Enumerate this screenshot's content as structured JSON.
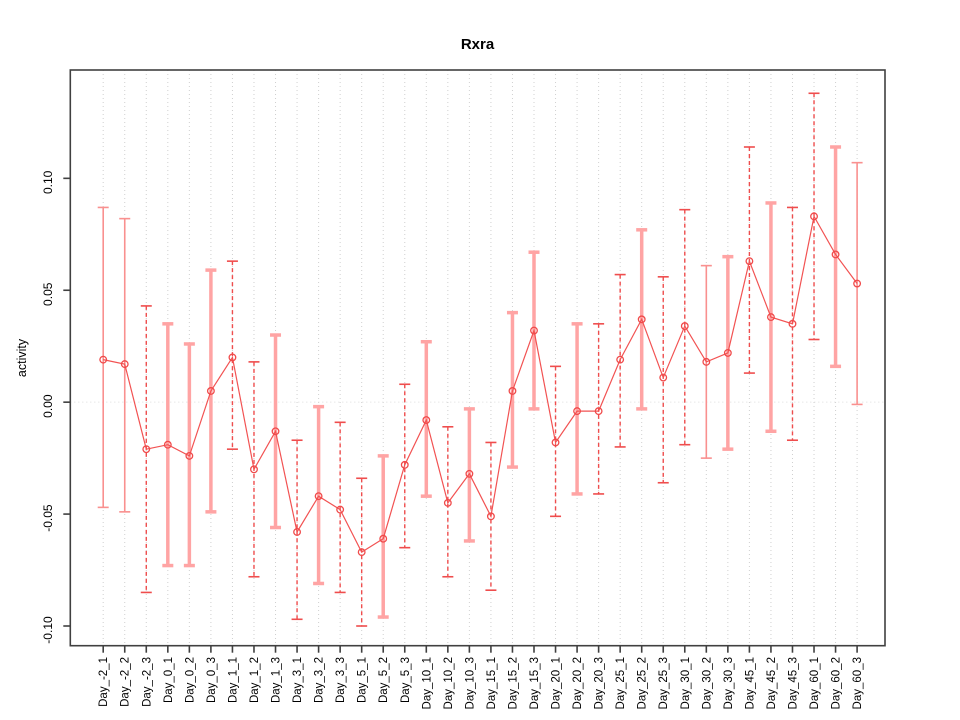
{
  "title": "Rxra",
  "ylabel": "activity",
  "chart_data": {
    "type": "scatter",
    "title": "Rxra",
    "xlabel": "",
    "ylabel": "activity",
    "legend": null,
    "grid": "vertical-dotted",
    "zero_line": true,
    "categories": [
      "Day_-2_1",
      "Day_-2_2",
      "Day_-2_3",
      "Day_0_1",
      "Day_0_2",
      "Day_0_3",
      "Day_1_1",
      "Day_1_2",
      "Day_1_3",
      "Day_3_1",
      "Day_3_2",
      "Day_3_3",
      "Day_5_1",
      "Day_5_2",
      "Day_5_3",
      "Day_10_1",
      "Day_10_2",
      "Day_10_3",
      "Day_15_1",
      "Day_15_2",
      "Day_15_3",
      "Day_20_1",
      "Day_20_2",
      "Day_20_3",
      "Day_25_1",
      "Day_25_2",
      "Day_25_3",
      "Day_30_1",
      "Day_30_2",
      "Day_30_3",
      "Day_45_1",
      "Day_45_2",
      "Day_45_3",
      "Day_60_1",
      "Day_60_2",
      "Day_60_3"
    ],
    "series": [
      {
        "name": "activity",
        "values": [
          0.019,
          0.017,
          -0.021,
          -0.019,
          -0.024,
          0.005,
          0.02,
          -0.03,
          -0.013,
          -0.058,
          -0.042,
          -0.048,
          -0.067,
          -0.061,
          -0.028,
          -0.008,
          -0.045,
          -0.032,
          -0.051,
          0.005,
          0.032,
          -0.018,
          -0.004,
          -0.004,
          0.019,
          0.037,
          0.011,
          0.034,
          0.018,
          0.022,
          0.063,
          0.038,
          0.035,
          0.083,
          0.066,
          0.053
        ],
        "lower": [
          -0.047,
          -0.049,
          -0.085,
          -0.073,
          -0.073,
          -0.049,
          -0.021,
          -0.078,
          -0.056,
          -0.097,
          -0.081,
          -0.085,
          -0.1,
          -0.096,
          -0.065,
          -0.042,
          -0.078,
          -0.062,
          -0.084,
          -0.029,
          -0.003,
          -0.051,
          -0.041,
          -0.041,
          -0.02,
          -0.003,
          -0.036,
          -0.019,
          -0.025,
          -0.021,
          0.013,
          -0.013,
          -0.017,
          0.028,
          0.016,
          -0.001
        ],
        "upper": [
          0.087,
          0.082,
          0.043,
          0.035,
          0.026,
          0.059,
          0.063,
          0.018,
          0.03,
          -0.017,
          -0.002,
          -0.009,
          -0.034,
          -0.024,
          0.008,
          0.027,
          -0.011,
          -0.003,
          -0.018,
          0.04,
          0.067,
          0.016,
          0.035,
          0.035,
          0.057,
          0.077,
          0.056,
          0.086,
          0.061,
          0.065,
          0.114,
          0.089,
          0.087,
          0.138,
          0.114,
          0.107
        ]
      }
    ],
    "error_bar_styles": [
      "solid",
      "solid",
      "dashed",
      "thick",
      "thick",
      "thick",
      "dashed",
      "dashed",
      "thick",
      "dashed",
      "thick",
      "dashed",
      "dashed",
      "thick",
      "dashed",
      "thick",
      "dashed",
      "thick",
      "dashed",
      "thick",
      "thick",
      "dashed",
      "thick",
      "dashed",
      "dashed",
      "thick",
      "dashed",
      "dashed",
      "solid",
      "thick",
      "dashed",
      "thick",
      "dashed",
      "dashed",
      "thick",
      "solid"
    ],
    "yticks": [
      {
        "value": 0.1,
        "label": "0.10"
      },
      {
        "value": 0.05,
        "label": "0.05"
      },
      {
        "value": 0.0,
        "label": "0.00"
      },
      {
        "value": -0.05,
        "label": "-0.05"
      },
      {
        "value": -0.1,
        "label": "-0.10"
      }
    ],
    "ylim": [
      -0.1088,
      0.1484
    ],
    "colors": {
      "point": "#f04a4a",
      "line": "#f25252",
      "error_thick": "#ffa4a4",
      "error_dashed": "#ef4d4d",
      "error_solid": "#f9908f",
      "grid": "#d0d0d0",
      "zero_line": "#dcdcdc",
      "box": "#404040",
      "text": "#000000"
    }
  }
}
